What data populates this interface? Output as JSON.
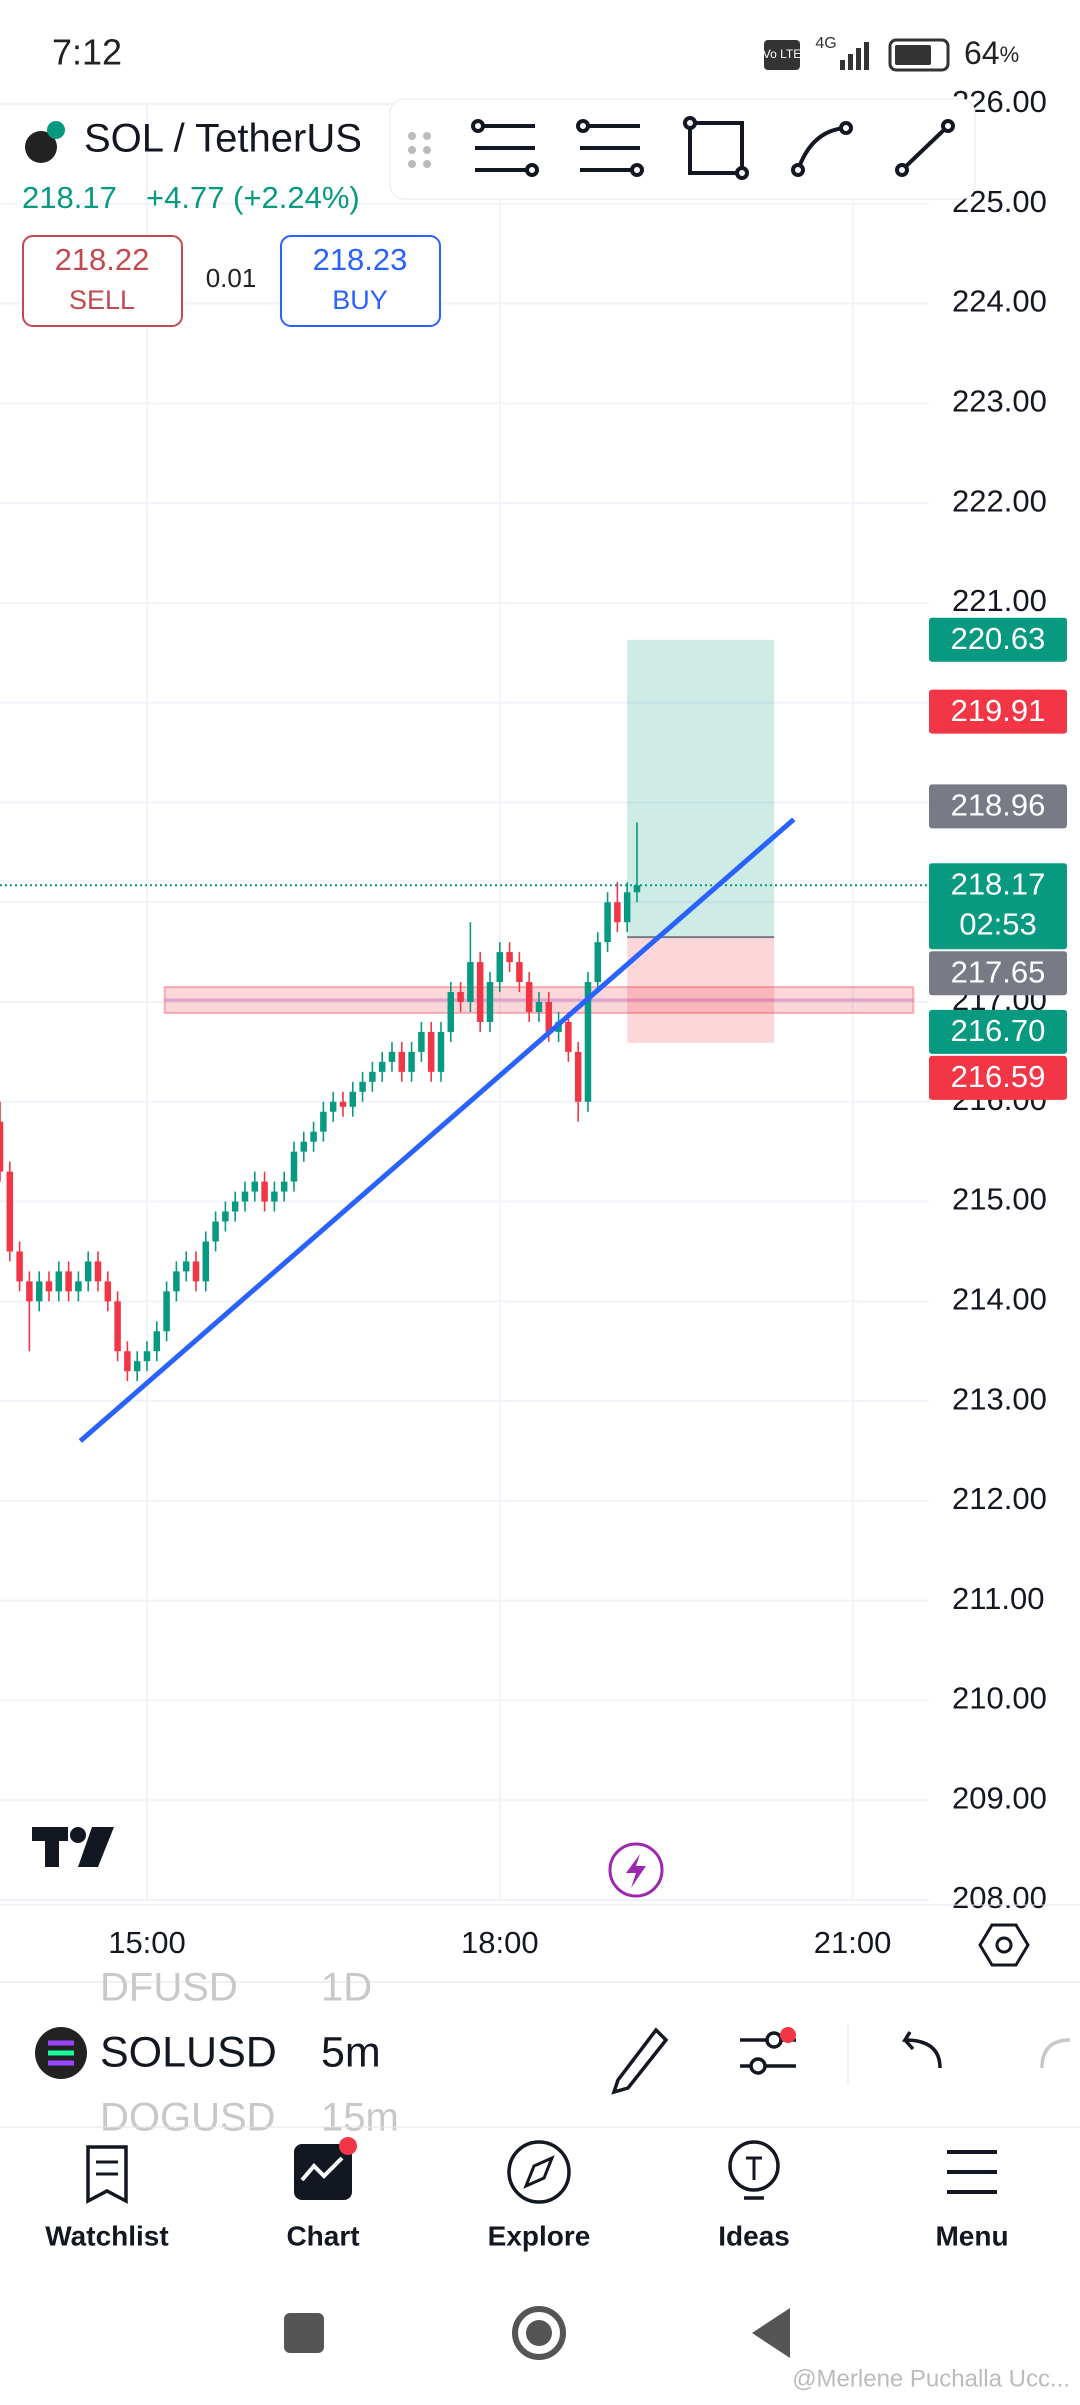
{
  "status_bar": {
    "time": "7:12",
    "volte": "Vo LTE",
    "network": "4G",
    "battery": "64",
    "battery_unit": "%"
  },
  "header": {
    "symbol": "SOL / TetherUS",
    "price": "218.17",
    "change": "+4.77 (+2.24%)",
    "sell_price": "218.22",
    "sell_label": "SELL",
    "spread": "0.01",
    "buy_price": "218.23",
    "buy_label": "BUY"
  },
  "chart_data": {
    "type": "candlestick",
    "up_color": "#089981",
    "down_color": "#f23645",
    "grid": true,
    "xlim": [
      "13:45",
      "21:39"
    ],
    "ylim": [
      208,
      226
    ],
    "xticks": [
      "15:00",
      "18:00",
      "21:00"
    ],
    "yticks": [
      {
        "value": 208,
        "label": "208.00"
      },
      {
        "value": 209,
        "label": "209.00"
      },
      {
        "value": 210,
        "label": "210.00"
      },
      {
        "value": 211,
        "label": "211.00"
      },
      {
        "value": 212,
        "label": "212.00"
      },
      {
        "value": 213,
        "label": "213.00"
      },
      {
        "value": 214,
        "label": "214.00"
      },
      {
        "value": 215,
        "label": "215.00"
      },
      {
        "value": 216,
        "label": "216.00"
      },
      {
        "value": 217,
        "label": "217.00"
      },
      {
        "value": 218,
        "label": "218.00"
      },
      {
        "value": 219,
        "label": "219.00"
      },
      {
        "value": 220,
        "label": "220.00"
      },
      {
        "value": 221,
        "label": "221.00"
      },
      {
        "value": 222,
        "label": "222.00"
      },
      {
        "value": 223,
        "label": "223.00"
      },
      {
        "value": 224,
        "label": "224.00"
      },
      {
        "value": 225,
        "label": "225.00"
      },
      {
        "value": 226,
        "label": "226.00"
      }
    ],
    "x": [
      "13:45",
      "13:50",
      "13:55",
      "14:00",
      "14:05",
      "14:10",
      "14:15",
      "14:20",
      "14:25",
      "14:30",
      "14:35",
      "14:40",
      "14:45",
      "14:50",
      "14:55",
      "15:00",
      "15:05",
      "15:10",
      "15:15",
      "15:20",
      "15:25",
      "15:30",
      "15:35",
      "15:40",
      "15:45",
      "15:50",
      "15:55",
      "16:00",
      "16:05",
      "16:10",
      "16:15",
      "16:20",
      "16:25",
      "16:30",
      "16:35",
      "16:40",
      "16:45",
      "16:50",
      "16:55",
      "17:00",
      "17:05",
      "17:10",
      "17:15",
      "17:20",
      "17:25",
      "17:30",
      "17:35",
      "17:40",
      "17:45",
      "17:50",
      "17:55",
      "18:00",
      "18:05",
      "18:10",
      "18:15",
      "18:20",
      "18:25",
      "18:30",
      "18:35",
      "18:40",
      "18:45",
      "18:50",
      "18:55",
      "19:00",
      "19:05",
      "19:10"
    ],
    "open": [
      215.8,
      215.3,
      214.5,
      214.2,
      214.0,
      214.2,
      214.1,
      214.3,
      214.1,
      214.2,
      214.4,
      214.2,
      214.0,
      213.5,
      213.3,
      213.4,
      213.5,
      213.7,
      214.1,
      214.3,
      214.4,
      214.2,
      214.6,
      214.8,
      214.9,
      215.0,
      215.1,
      215.2,
      215.0,
      215.1,
      215.2,
      215.5,
      215.6,
      215.7,
      215.9,
      216.0,
      215.95,
      216.1,
      216.2,
      216.3,
      216.4,
      216.5,
      216.3,
      216.5,
      216.7,
      216.3,
      216.7,
      217.1,
      217.0,
      217.4,
      216.8,
      217.2,
      217.5,
      217.4,
      217.2,
      216.9,
      217.0,
      216.7,
      216.8,
      216.5,
      216.0,
      217.2,
      217.6,
      218.0,
      217.8,
      218.1
    ],
    "high": [
      216.0,
      215.4,
      214.6,
      214.3,
      214.3,
      214.3,
      214.4,
      214.4,
      214.3,
      214.5,
      214.5,
      214.3,
      214.1,
      213.6,
      213.5,
      213.6,
      213.8,
      214.2,
      214.4,
      214.5,
      214.5,
      214.7,
      214.9,
      215.0,
      215.1,
      215.2,
      215.3,
      215.3,
      215.2,
      215.3,
      215.6,
      215.7,
      215.8,
      216.0,
      216.1,
      216.1,
      216.2,
      216.3,
      216.4,
      216.5,
      216.6,
      216.6,
      216.6,
      216.8,
      216.8,
      216.8,
      217.2,
      217.2,
      217.8,
      217.5,
      217.3,
      217.6,
      217.6,
      217.5,
      217.3,
      217.1,
      217.1,
      216.9,
      216.9,
      216.6,
      217.3,
      217.7,
      218.1,
      218.2,
      218.2,
      218.8
    ],
    "low": [
      215.2,
      214.4,
      214.1,
      213.5,
      213.9,
      214.0,
      214.0,
      214.0,
      214.0,
      214.1,
      214.1,
      213.9,
      213.4,
      213.2,
      213.2,
      213.3,
      213.4,
      213.6,
      214.0,
      214.2,
      214.1,
      214.1,
      214.5,
      214.7,
      214.8,
      214.9,
      215.0,
      214.9,
      214.9,
      215.0,
      215.1,
      215.4,
      215.5,
      215.6,
      215.8,
      215.85,
      215.85,
      216.0,
      216.1,
      216.2,
      216.3,
      216.2,
      216.2,
      216.4,
      216.2,
      216.2,
      216.6,
      216.9,
      216.9,
      216.7,
      216.7,
      217.1,
      217.3,
      217.1,
      216.8,
      216.8,
      216.6,
      216.6,
      216.4,
      215.8,
      215.9,
      217.1,
      217.5,
      217.7,
      217.7,
      218.0
    ],
    "close": [
      215.3,
      214.5,
      214.2,
      214.0,
      214.2,
      214.1,
      214.3,
      214.1,
      214.2,
      214.4,
      214.2,
      214.0,
      213.5,
      213.3,
      213.4,
      213.5,
      213.7,
      214.1,
      214.3,
      214.4,
      214.2,
      214.6,
      214.8,
      214.9,
      215.0,
      215.1,
      215.2,
      215.0,
      215.1,
      215.2,
      215.5,
      215.6,
      215.7,
      215.9,
      216.0,
      215.95,
      216.1,
      216.2,
      216.3,
      216.4,
      216.5,
      216.3,
      216.5,
      216.7,
      216.3,
      216.7,
      217.1,
      217.0,
      217.4,
      216.8,
      217.2,
      217.5,
      217.4,
      217.2,
      216.9,
      217.0,
      216.7,
      216.8,
      216.5,
      216.0,
      217.2,
      217.6,
      218.0,
      217.8,
      218.1,
      218.17
    ],
    "price_labels": [
      {
        "value": 220.63,
        "label": "220.63",
        "color": "#089981"
      },
      {
        "value": 219.91,
        "label": "219.91",
        "color": "#f23645"
      },
      {
        "value": 218.96,
        "label": "218.96",
        "color": "#787b86"
      },
      {
        "value": 218.17,
        "label": "218.17",
        "color": "#089981",
        "countdown": "02:53"
      },
      {
        "value": 217.65,
        "label": "217.65",
        "color": "#787b86"
      },
      {
        "value": 216.7,
        "label": "216.70",
        "color": "#089981"
      },
      {
        "value": 216.59,
        "label": "216.59",
        "color": "#f23645"
      }
    ],
    "position_x": [
      "19:05",
      "20:20"
    ],
    "trend_line": {
      "x": [
        "14:26",
        "20:30"
      ],
      "y": [
        212.6,
        218.83
      ],
      "color": "#2962ff"
    },
    "zone": {
      "x": [
        "15:09",
        "21:31"
      ],
      "y": [
        216.89,
        217.15
      ]
    }
  },
  "bottom_toolbar": {
    "symbol": "SOLUSD",
    "interval": "5m",
    "prev_symbol": "DFUSD",
    "prev_interval": "1D",
    "next_symbol": "DOGUSD",
    "next_interval": "15m"
  },
  "nav": [
    "Watchlist",
    "Chart",
    "Explore",
    "Ideas",
    "Menu"
  ],
  "watermark": "@Merlene Puchalla Ucc..."
}
